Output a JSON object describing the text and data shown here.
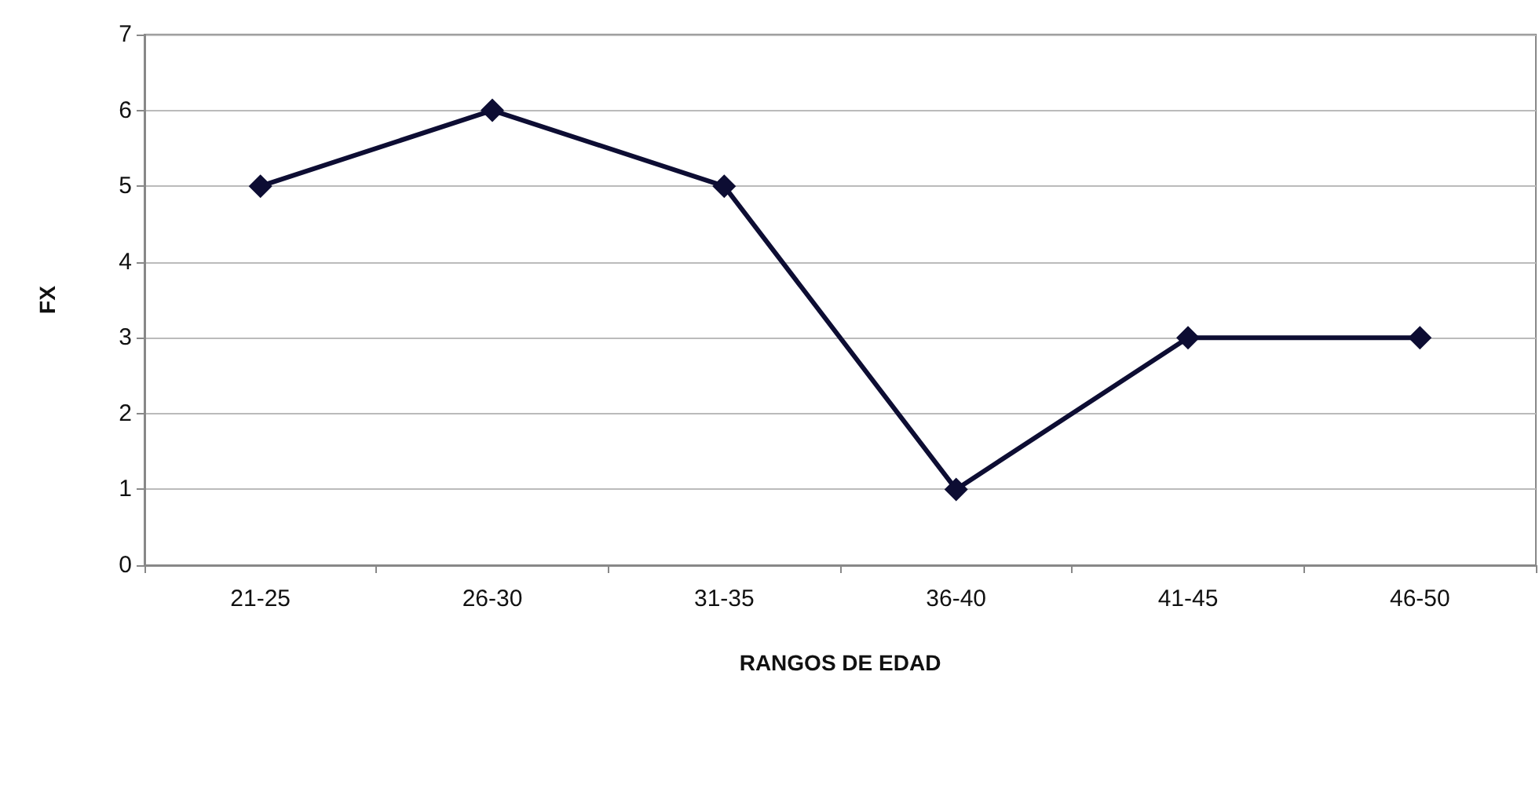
{
  "chart_data": {
    "type": "line",
    "xlabel": "RANGOS DE EDAD",
    "ylabel": "FX",
    "categories": [
      "21-25",
      "26-30",
      "31-35",
      "36-40",
      "41-45",
      "46-50"
    ],
    "series": [
      {
        "color": "#0d0d33",
        "values": [
          5,
          6,
          5,
          1,
          3,
          3
        ]
      }
    ],
    "ylim": [
      0,
      7
    ],
    "yticks": [
      0,
      1,
      2,
      3,
      4,
      5,
      6,
      7
    ],
    "grid": "y",
    "marker": "diamond",
    "line_style": "solid"
  }
}
